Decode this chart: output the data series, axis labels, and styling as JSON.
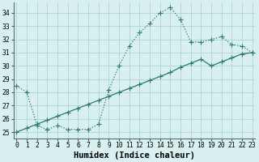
{
  "line1_x": [
    0,
    1,
    2,
    3,
    4,
    5,
    6,
    7,
    8,
    9,
    10,
    11,
    12,
    13,
    14,
    15,
    16,
    17,
    18,
    19,
    20,
    21,
    22,
    23
  ],
  "line1_y": [
    28.5,
    28.0,
    25.5,
    25.2,
    25.5,
    25.2,
    25.2,
    25.2,
    25.6,
    28.2,
    30.0,
    31.5,
    32.5,
    33.2,
    34.0,
    34.4,
    33.5,
    31.8,
    31.8,
    32.0,
    32.2,
    31.6,
    31.5,
    31.0
  ],
  "line2_x": [
    0,
    1,
    2,
    3,
    4,
    5,
    6,
    7,
    8,
    9,
    10,
    11,
    12,
    13,
    14,
    15,
    16,
    17,
    18,
    19,
    20,
    21,
    22,
    23
  ],
  "line2_y": [
    25.0,
    25.3,
    25.6,
    25.9,
    26.2,
    26.5,
    26.8,
    27.1,
    27.4,
    27.7,
    28.0,
    28.3,
    28.6,
    28.9,
    29.2,
    29.5,
    29.9,
    30.2,
    30.5,
    30.0,
    30.3,
    30.6,
    30.9,
    31.0
  ],
  "line_color": "#2a7a6e",
  "bg_color": "#d8f0f0",
  "grid_color": "#aed4d0",
  "xlabel": "Humidex (Indice chaleur)",
  "yticks": [
    25,
    26,
    27,
    28,
    29,
    30,
    31,
    32,
    33,
    34
  ],
  "xticks": [
    0,
    1,
    2,
    3,
    4,
    5,
    6,
    7,
    8,
    9,
    10,
    11,
    12,
    13,
    14,
    15,
    16,
    17,
    18,
    19,
    20,
    21,
    22,
    23
  ],
  "xlim": [
    -0.3,
    23.3
  ],
  "ylim": [
    24.5,
    34.8
  ],
  "tick_fontsize": 5.8,
  "xlabel_fontsize": 7.5,
  "markersize": 2.0,
  "linewidth": 0.9
}
